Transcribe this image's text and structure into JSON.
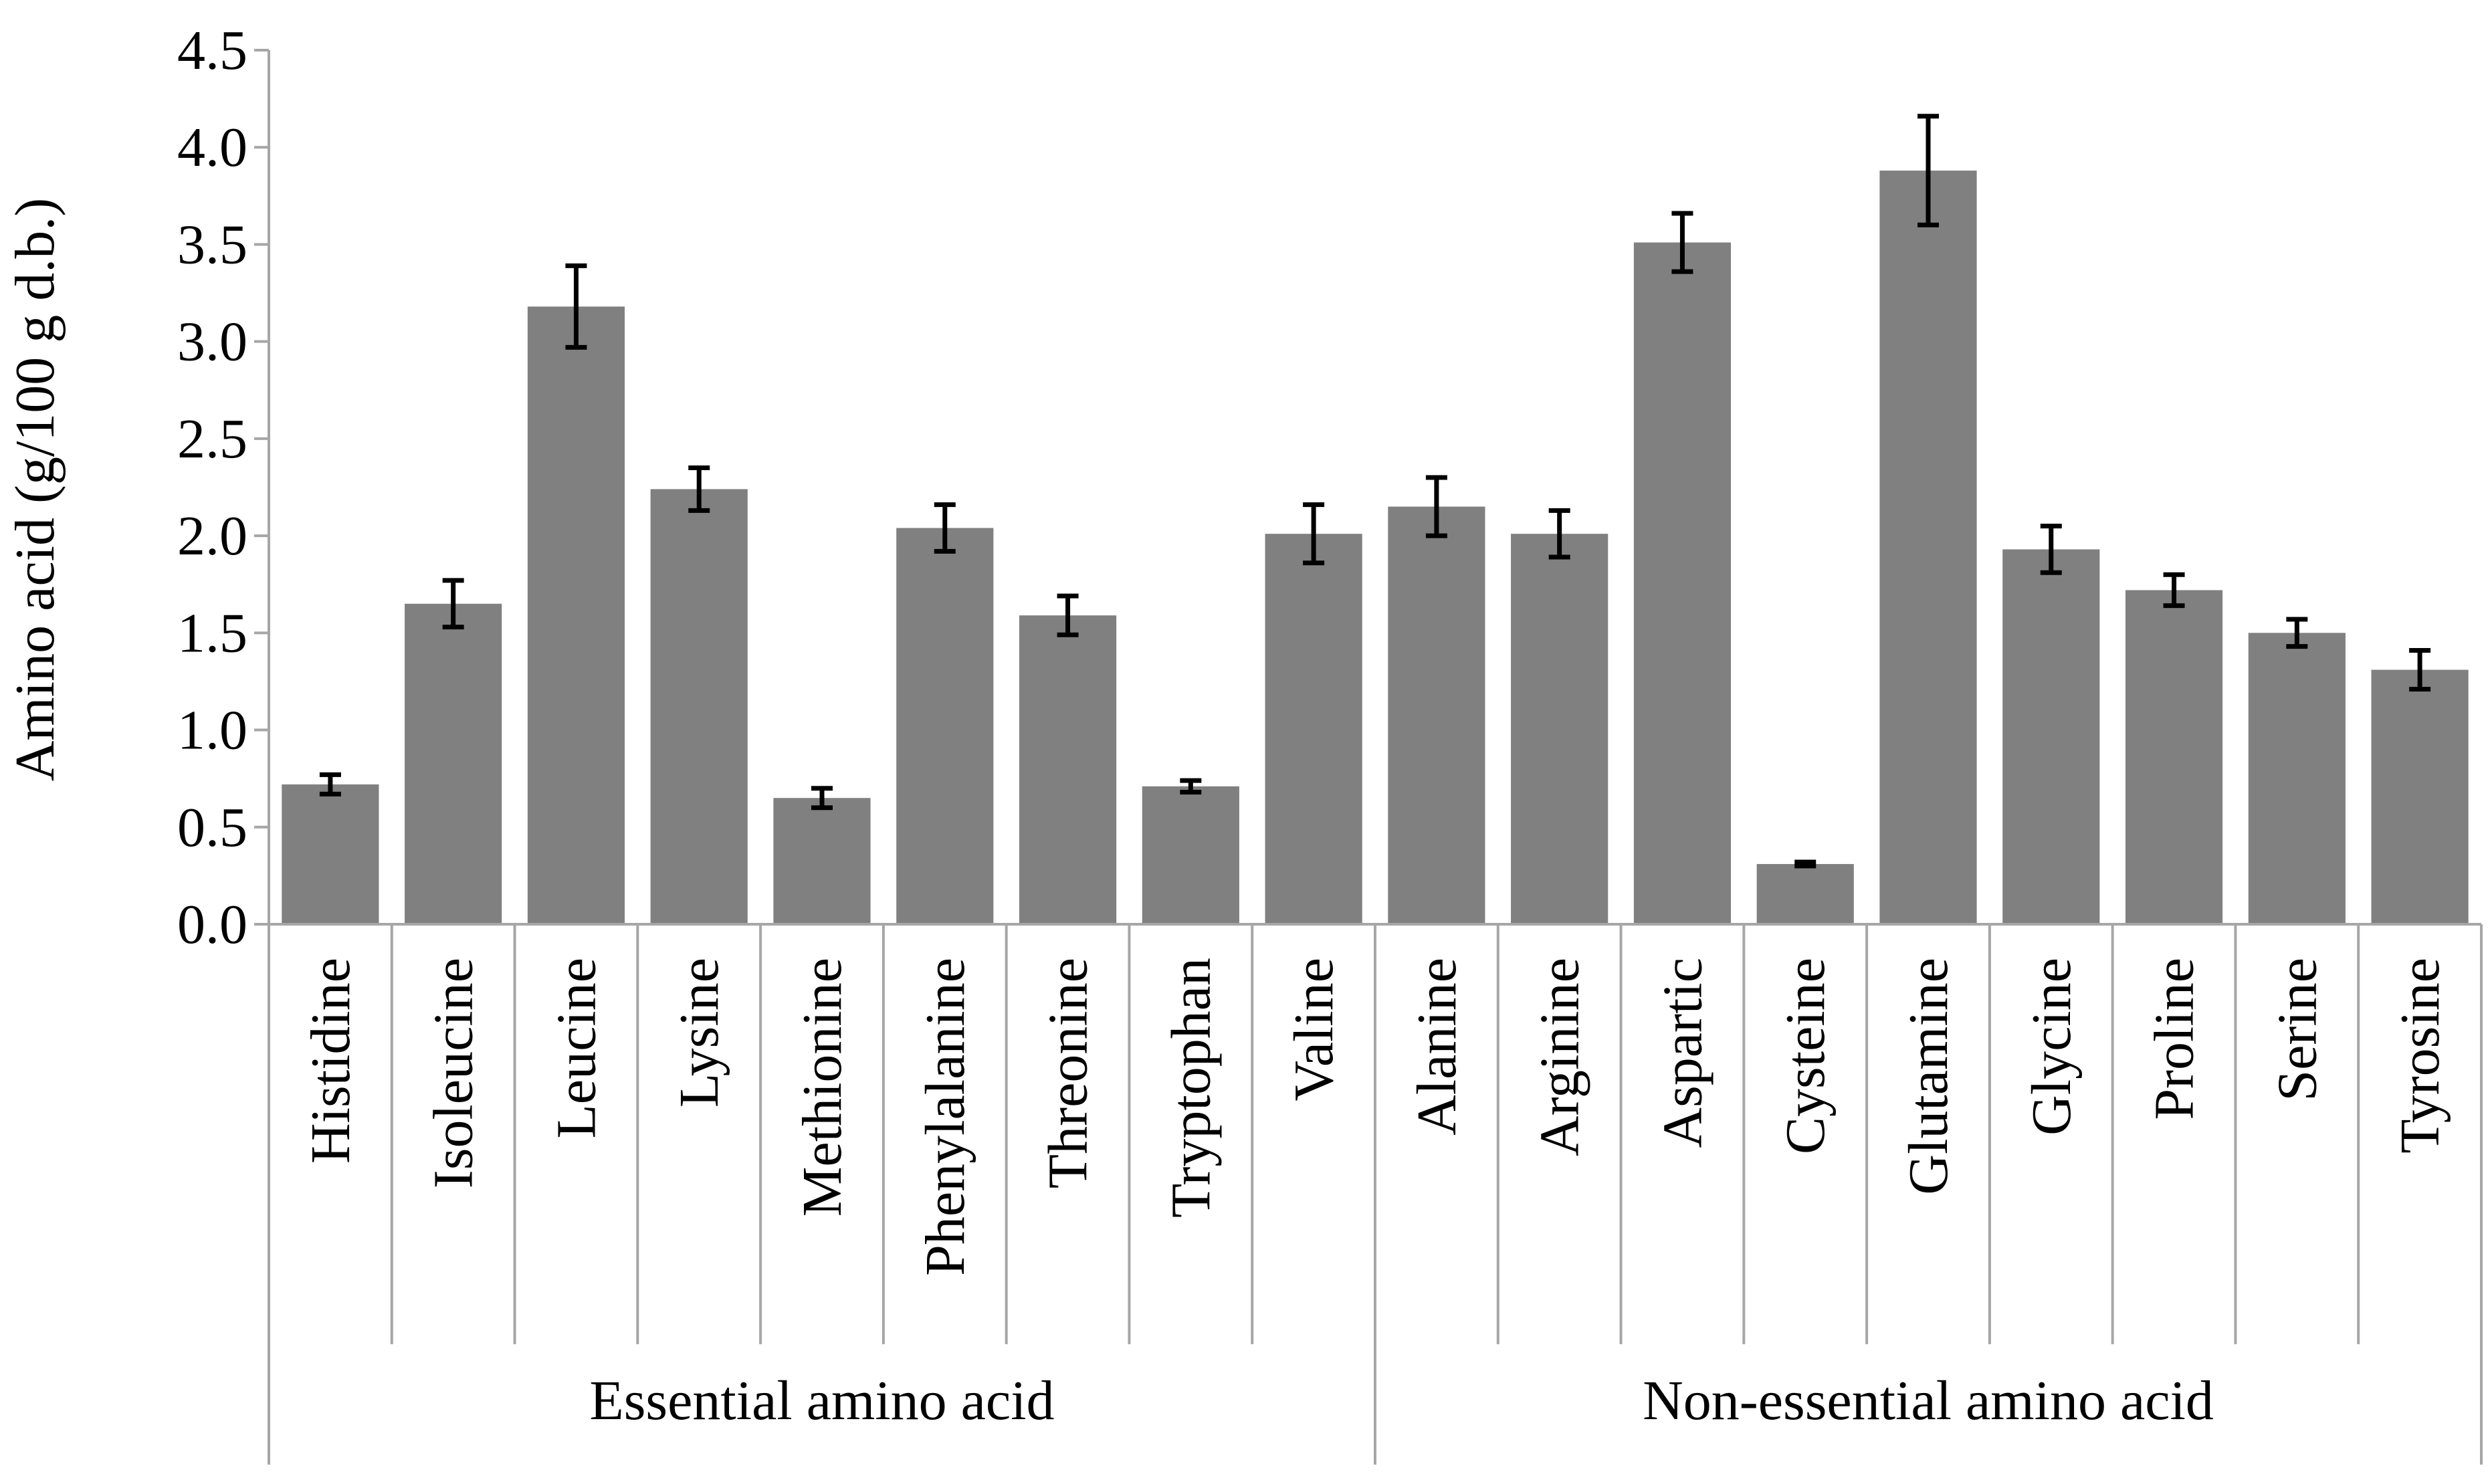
{
  "chart_data": {
    "type": "bar",
    "title": "",
    "xlabel": "",
    "ylabel": "Amino acid (g/100 g d.b.)",
    "ylim": [
      0,
      4.5
    ],
    "yticks": [
      "0.0",
      "0.5",
      "1.0",
      "1.5",
      "2.0",
      "2.5",
      "3.0",
      "3.5",
      "4.0",
      "4.5"
    ],
    "grid": false,
    "legend": "none",
    "bar_color": "#808080",
    "error_bar_color": "#000000",
    "axis_color": "#a6a6a6",
    "categories": [
      "Histidine",
      "Isoleucine",
      "Leucine",
      "Lysine",
      "Methionine",
      "Phenylalanine",
      "Threonine",
      "Tryptophan",
      "Valine",
      "Alanine",
      "Arginine",
      "Aspartic",
      "Cysteine",
      "Glutamine",
      "Glycine",
      "Proline",
      "Serine",
      "Tyrosine"
    ],
    "values": [
      0.72,
      1.65,
      3.18,
      2.24,
      0.65,
      2.04,
      1.59,
      0.71,
      2.01,
      2.15,
      2.01,
      3.51,
      0.31,
      3.88,
      1.93,
      1.72,
      1.5,
      1.31
    ],
    "errors": [
      0.05,
      0.12,
      0.21,
      0.11,
      0.05,
      0.12,
      0.1,
      0.03,
      0.15,
      0.15,
      0.12,
      0.15,
      0.01,
      0.28,
      0.12,
      0.08,
      0.07,
      0.1
    ],
    "groups": [
      {
        "label": "Essential amino acid",
        "start": 0,
        "count": 9
      },
      {
        "label": "Non-essential amino acid",
        "start": 9,
        "count": 9
      }
    ]
  }
}
